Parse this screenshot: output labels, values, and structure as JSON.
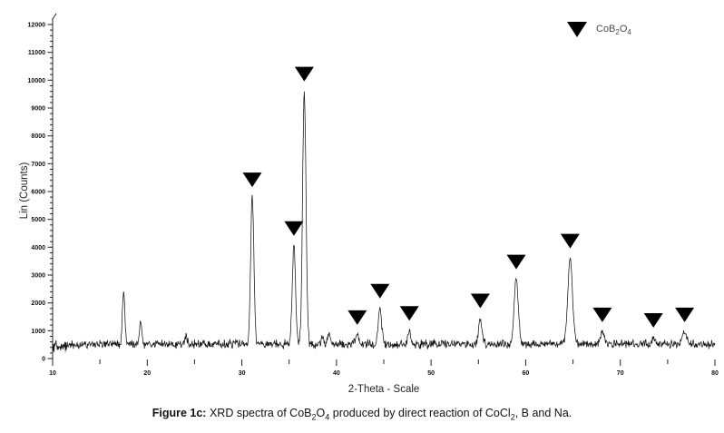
{
  "figure": {
    "caption_segments": [
      {
        "text": "Figure 1c:",
        "bold": true
      },
      {
        "text": " XRD spectra of CoB"
      },
      {
        "text": "2",
        "sub": true
      },
      {
        "text": "O"
      },
      {
        "text": "4",
        "sub": true
      },
      {
        "text": " produced by direct reaction of CoCl"
      },
      {
        "text": "2",
        "sub": true
      },
      {
        "text": ", B and Na."
      }
    ]
  },
  "chart_data": {
    "type": "line",
    "subtype": "xrd-spectrum",
    "title": "",
    "xlabel": "2-Theta - Scale",
    "ylabel": "Lin (Counts)",
    "xlim": [
      10,
      80
    ],
    "ylim": [
      0,
      12000
    ],
    "x_major_tick_step": 10,
    "x_minor_tick_step": 5,
    "y_major_tick_step": 1000,
    "y_minor_tick_step": 200,
    "x_tick_labels": [
      "10",
      "20",
      "30",
      "40",
      "50",
      "60",
      "70",
      "80"
    ],
    "y_tick_labels": [
      "0",
      "1000",
      "2000",
      "3000",
      "4000",
      "5000",
      "6000",
      "7000",
      "8000",
      "9000",
      "10000",
      "11000",
      "12000"
    ],
    "grid": false,
    "legend_position": "top-right",
    "legend": {
      "marker": "filled-down-triangle",
      "label": "CoB2O4",
      "label_segments": [
        {
          "text": "CoB"
        },
        {
          "text": "2",
          "sub": true
        },
        {
          "text": "O"
        },
        {
          "text": "4",
          "sub": true
        }
      ]
    },
    "colors": {
      "trace": "#151515",
      "marker": "#000000",
      "axis": "#222222",
      "background": "#ffffff"
    },
    "noise": {
      "baseline_counts": 520,
      "amplitude_counts": 190,
      "start_blob_theta_end": 11.7,
      "start_blob_baseline": 450,
      "start_blob_amplitude": 280
    },
    "series": [
      {
        "name": "CoB2O4 XRD pattern",
        "marked_phase": "CoB2O4",
        "peaks": [
          {
            "two_theta": 17.5,
            "intensity": 2500,
            "sigma": 0.13,
            "marked": false
          },
          {
            "two_theta": 19.3,
            "intensity": 1350,
            "sigma": 0.13,
            "marked": false
          },
          {
            "two_theta": 24.1,
            "intensity": 800,
            "sigma": 0.13,
            "marked": false
          },
          {
            "two_theta": 31.1,
            "intensity": 5800,
            "sigma": 0.17,
            "marked": true
          },
          {
            "two_theta": 35.5,
            "intensity": 4050,
            "sigma": 0.17,
            "marked": true
          },
          {
            "two_theta": 36.6,
            "intensity": 9600,
            "sigma": 0.18,
            "marked": true
          },
          {
            "two_theta": 38.5,
            "intensity": 750,
            "sigma": 0.15,
            "marked": false
          },
          {
            "two_theta": 39.2,
            "intensity": 850,
            "sigma": 0.15,
            "marked": false
          },
          {
            "two_theta": 42.2,
            "intensity": 850,
            "sigma": 0.15,
            "marked": true
          },
          {
            "two_theta": 44.6,
            "intensity": 1800,
            "sigma": 0.18,
            "marked": true
          },
          {
            "two_theta": 47.7,
            "intensity": 1000,
            "sigma": 0.15,
            "marked": true
          },
          {
            "two_theta": 55.2,
            "intensity": 1450,
            "sigma": 0.17,
            "marked": true
          },
          {
            "two_theta": 59.0,
            "intensity": 2850,
            "sigma": 0.22,
            "marked": true
          },
          {
            "two_theta": 64.7,
            "intensity": 3600,
            "sigma": 0.24,
            "marked": true
          },
          {
            "two_theta": 68.1,
            "intensity": 950,
            "sigma": 0.2,
            "marked": true
          },
          {
            "two_theta": 73.5,
            "intensity": 750,
            "sigma": 0.2,
            "marked": true
          },
          {
            "two_theta": 76.8,
            "intensity": 950,
            "sigma": 0.22,
            "marked": true
          }
        ]
      }
    ]
  }
}
